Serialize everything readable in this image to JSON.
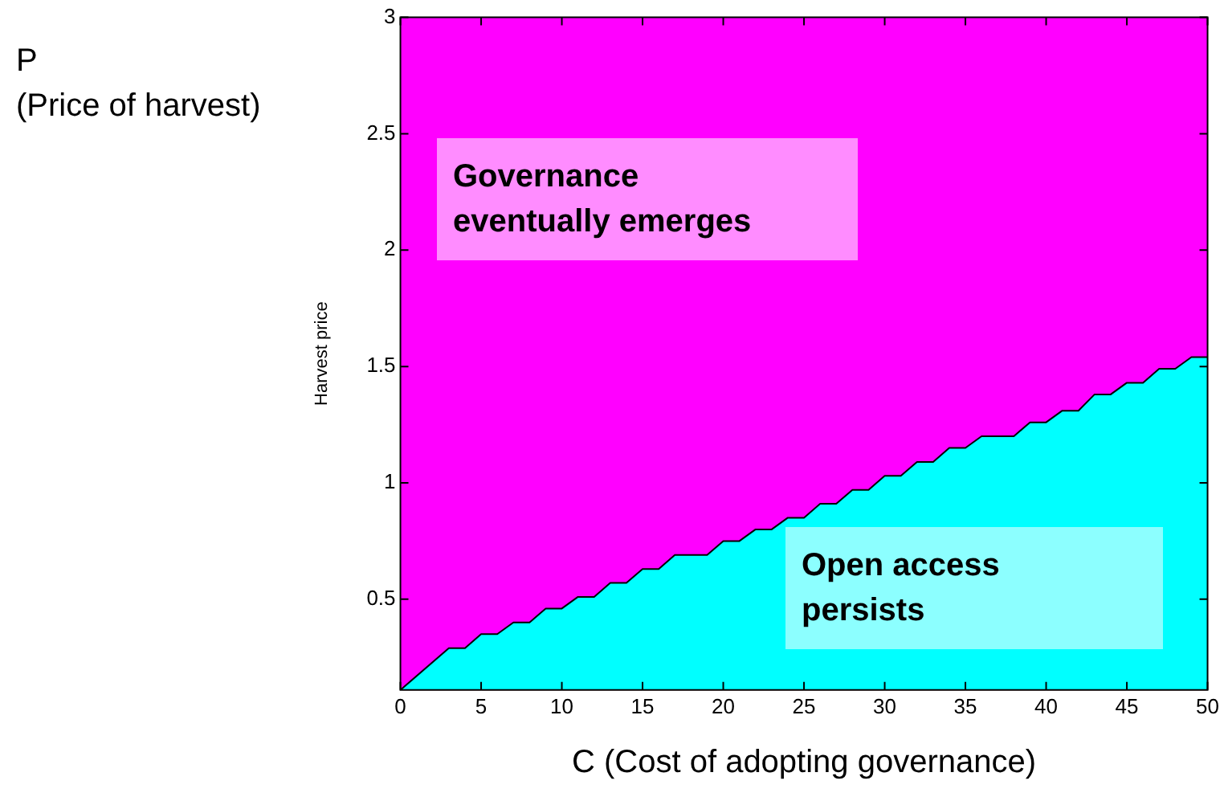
{
  "chart_data": {
    "type": "area",
    "xlabel": "C (Cost of adopting governance)",
    "ylabel": "Harvest price",
    "x": [
      0,
      3,
      4,
      5,
      6,
      7,
      8,
      9,
      10,
      11,
      12,
      13,
      14,
      15,
      16,
      17,
      19,
      20,
      21,
      22,
      23,
      24,
      25,
      26,
      27,
      28,
      29,
      30,
      31,
      32,
      33,
      34,
      35,
      36,
      38,
      39,
      40,
      41,
      42,
      43,
      44,
      45,
      46,
      47,
      48,
      49,
      50
    ],
    "series": [
      {
        "color": "#00ffff",
        "values": [
          0.11,
          0.29,
          0.29,
          0.35,
          0.35,
          0.4,
          0.4,
          0.46,
          0.46,
          0.51,
          0.51,
          0.57,
          0.57,
          0.63,
          0.63,
          0.69,
          0.69,
          0.75,
          0.75,
          0.8,
          0.8,
          0.85,
          0.85,
          0.91,
          0.91,
          0.97,
          0.97,
          1.03,
          1.03,
          1.09,
          1.09,
          1.15,
          1.15,
          1.2,
          1.2,
          1.26,
          1.26,
          1.31,
          1.31,
          1.38,
          1.38,
          1.43,
          1.43,
          1.49,
          1.49,
          1.54,
          1.54
        ]
      },
      {
        "color": "#ff00ff",
        "values": [
          3,
          3,
          3,
          3,
          3,
          3,
          3,
          3,
          3,
          3,
          3,
          3,
          3,
          3,
          3,
          3,
          3,
          3,
          3,
          3,
          3,
          3,
          3,
          3,
          3,
          3,
          3,
          3,
          3,
          3,
          3,
          3,
          3,
          3,
          3,
          3,
          3,
          3,
          3,
          3,
          3,
          3,
          3,
          3,
          3,
          3,
          3
        ]
      }
    ],
    "xlim": [
      0,
      50
    ],
    "xticks": [
      0,
      5,
      10,
      15,
      20,
      25,
      30,
      35,
      40,
      45,
      50
    ],
    "ylim": [
      0.11,
      3
    ],
    "yticks": [
      0.5,
      1,
      1.5,
      2,
      2.5,
      3
    ],
    "grid": false,
    "legend": false,
    "annotations": [
      "P\n(Price of harvest)",
      "Governance\neventually emerges",
      "Open access\npersists"
    ]
  }
}
